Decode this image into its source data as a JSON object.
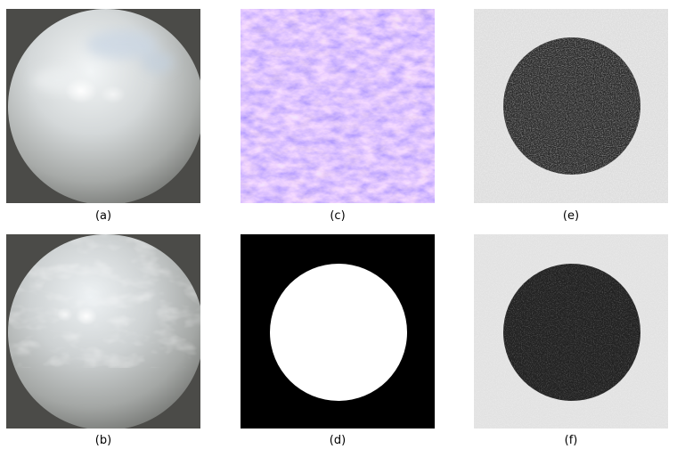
{
  "panels": [
    {
      "id": "a",
      "label": "(a)",
      "content": "rendered-sphere-smooth"
    },
    {
      "id": "b",
      "label": "(b)",
      "content": "rendered-sphere-normal-mapped"
    },
    {
      "id": "c",
      "label": "(c)",
      "content": "normal-map-texture"
    },
    {
      "id": "d",
      "label": "(d)",
      "content": "binary-disk-mask"
    },
    {
      "id": "e",
      "label": "(e)",
      "content": "noisy-disk-estimate"
    },
    {
      "id": "f",
      "label": "(f)",
      "content": "noisy-disk-estimate-2"
    }
  ],
  "colors": {
    "background_dark": "#4b4b48",
    "sphere_light": "#e6ecef",
    "sphere_shadow": "#8c8f8c",
    "normal_map_blue": "#8a7cff",
    "normal_map_violet": "#b37ae8",
    "mask_black": "#000000",
    "mask_white": "#ffffff",
    "noise_light": "#ececec",
    "noise_dark": "#262626"
  }
}
